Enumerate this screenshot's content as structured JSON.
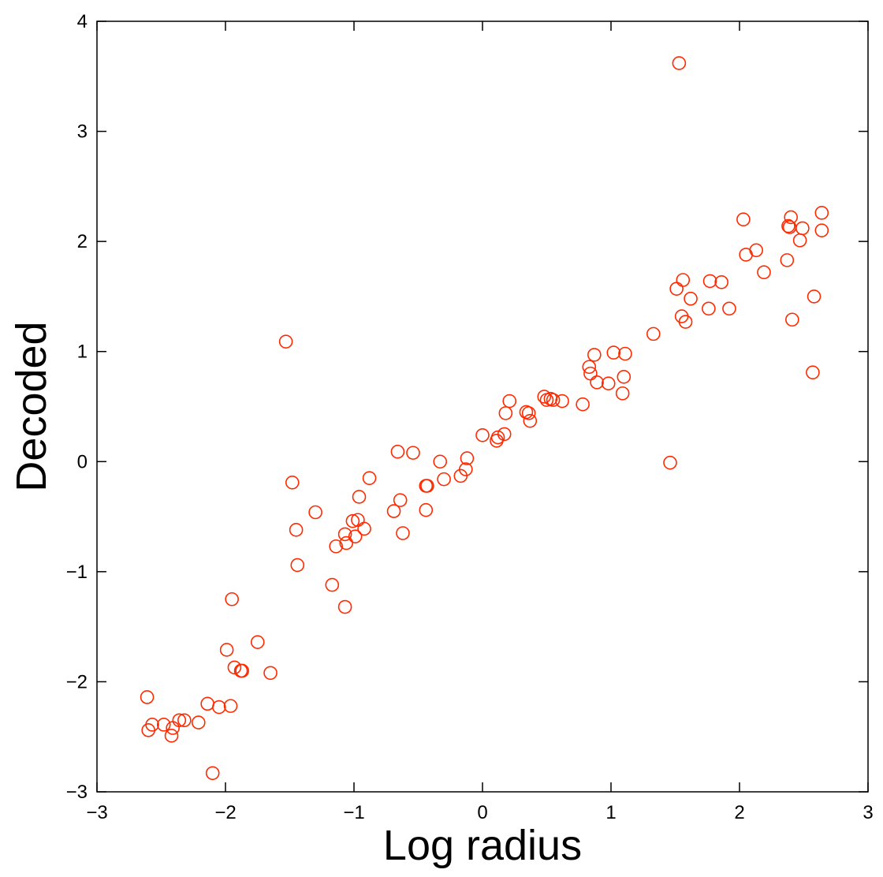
{
  "chart_data": {
    "type": "scatter",
    "xlabel": "Log radius",
    "ylabel": "Decoded",
    "xlim": [
      -3,
      3
    ],
    "ylim": [
      -3,
      4
    ],
    "xticks": [
      -3,
      -2,
      -1,
      0,
      1,
      2,
      3
    ],
    "yticks": [
      -3,
      -2,
      -1,
      0,
      1,
      2,
      3,
      4
    ],
    "xtick_labels": [
      "−3",
      "−2",
      "−1",
      "0",
      "1",
      "2",
      "3"
    ],
    "ytick_labels": [
      "−3",
      "−2",
      "−1",
      "0",
      "1",
      "2",
      "3",
      "4"
    ],
    "marker": "open-circle",
    "marker_color": "#ff2a00",
    "grid": false,
    "series": [
      {
        "points": [
          [
            -2.61,
            -2.14
          ],
          [
            -2.6,
            -2.44
          ],
          [
            -2.57,
            -2.39
          ],
          [
            -2.48,
            -2.39
          ],
          [
            -2.42,
            -2.49
          ],
          [
            -2.41,
            -2.42
          ],
          [
            -2.36,
            -2.35
          ],
          [
            -2.32,
            -2.35
          ],
          [
            -2.21,
            -2.37
          ],
          [
            -2.14,
            -2.2
          ],
          [
            -2.1,
            -2.83
          ],
          [
            -2.05,
            -2.23
          ],
          [
            -1.99,
            -1.71
          ],
          [
            -1.96,
            -2.22
          ],
          [
            -1.95,
            -1.25
          ],
          [
            -1.93,
            -1.87
          ],
          [
            -1.88,
            -1.9
          ],
          [
            -1.87,
            -1.9
          ],
          [
            -1.75,
            -1.64
          ],
          [
            -1.65,
            -1.92
          ],
          [
            -1.53,
            1.09
          ],
          [
            -1.48,
            -0.19
          ],
          [
            -1.45,
            -0.62
          ],
          [
            -1.44,
            -0.94
          ],
          [
            -1.3,
            -0.46
          ],
          [
            -1.17,
            -1.12
          ],
          [
            -1.14,
            -0.77
          ],
          [
            -1.07,
            -0.66
          ],
          [
            -1.07,
            -1.32
          ],
          [
            -1.06,
            -0.74
          ],
          [
            -1.01,
            -0.54
          ],
          [
            -0.99,
            -0.68
          ],
          [
            -0.97,
            -0.53
          ],
          [
            -0.96,
            -0.32
          ],
          [
            -0.92,
            -0.61
          ],
          [
            -0.88,
            -0.15
          ],
          [
            -0.69,
            -0.45
          ],
          [
            -0.66,
            0.09
          ],
          [
            -0.64,
            -0.35
          ],
          [
            -0.62,
            -0.65
          ],
          [
            -0.54,
            0.08
          ],
          [
            -0.44,
            -0.44
          ],
          [
            -0.44,
            -0.22
          ],
          [
            -0.43,
            -0.22
          ],
          [
            -0.33,
            0.0
          ],
          [
            -0.3,
            -0.16
          ],
          [
            -0.17,
            -0.13
          ],
          [
            -0.13,
            -0.07
          ],
          [
            -0.12,
            0.03
          ],
          [
            0.0,
            0.24
          ],
          [
            0.11,
            0.19
          ],
          [
            0.12,
            0.22
          ],
          [
            0.17,
            0.25
          ],
          [
            0.18,
            0.44
          ],
          [
            0.21,
            0.55
          ],
          [
            0.34,
            0.45
          ],
          [
            0.36,
            0.44
          ],
          [
            0.37,
            0.37
          ],
          [
            0.48,
            0.59
          ],
          [
            0.5,
            0.56
          ],
          [
            0.53,
            0.57
          ],
          [
            0.55,
            0.56
          ],
          [
            0.62,
            0.55
          ],
          [
            0.78,
            0.52
          ],
          [
            0.83,
            0.86
          ],
          [
            0.84,
            0.8
          ],
          [
            0.87,
            0.97
          ],
          [
            0.89,
            0.72
          ],
          [
            0.98,
            0.71
          ],
          [
            1.02,
            0.99
          ],
          [
            1.09,
            0.62
          ],
          [
            1.1,
            0.77
          ],
          [
            1.11,
            0.98
          ],
          [
            1.33,
            1.16
          ],
          [
            1.46,
            -0.01
          ],
          [
            1.51,
            1.57
          ],
          [
            1.53,
            3.62
          ],
          [
            1.55,
            1.32
          ],
          [
            1.56,
            1.65
          ],
          [
            1.58,
            1.27
          ],
          [
            1.62,
            1.48
          ],
          [
            1.76,
            1.39
          ],
          [
            1.77,
            1.64
          ],
          [
            1.86,
            1.63
          ],
          [
            1.92,
            1.39
          ],
          [
            2.03,
            2.2
          ],
          [
            2.05,
            1.88
          ],
          [
            2.13,
            1.92
          ],
          [
            2.19,
            1.72
          ],
          [
            2.37,
            1.83
          ],
          [
            2.38,
            2.14
          ],
          [
            2.39,
            2.13
          ],
          [
            2.4,
            2.22
          ],
          [
            2.41,
            1.29
          ],
          [
            2.47,
            2.01
          ],
          [
            2.49,
            2.12
          ],
          [
            2.57,
            0.81
          ],
          [
            2.58,
            1.5
          ],
          [
            2.64,
            2.26
          ],
          [
            2.64,
            2.1
          ]
        ]
      }
    ]
  }
}
